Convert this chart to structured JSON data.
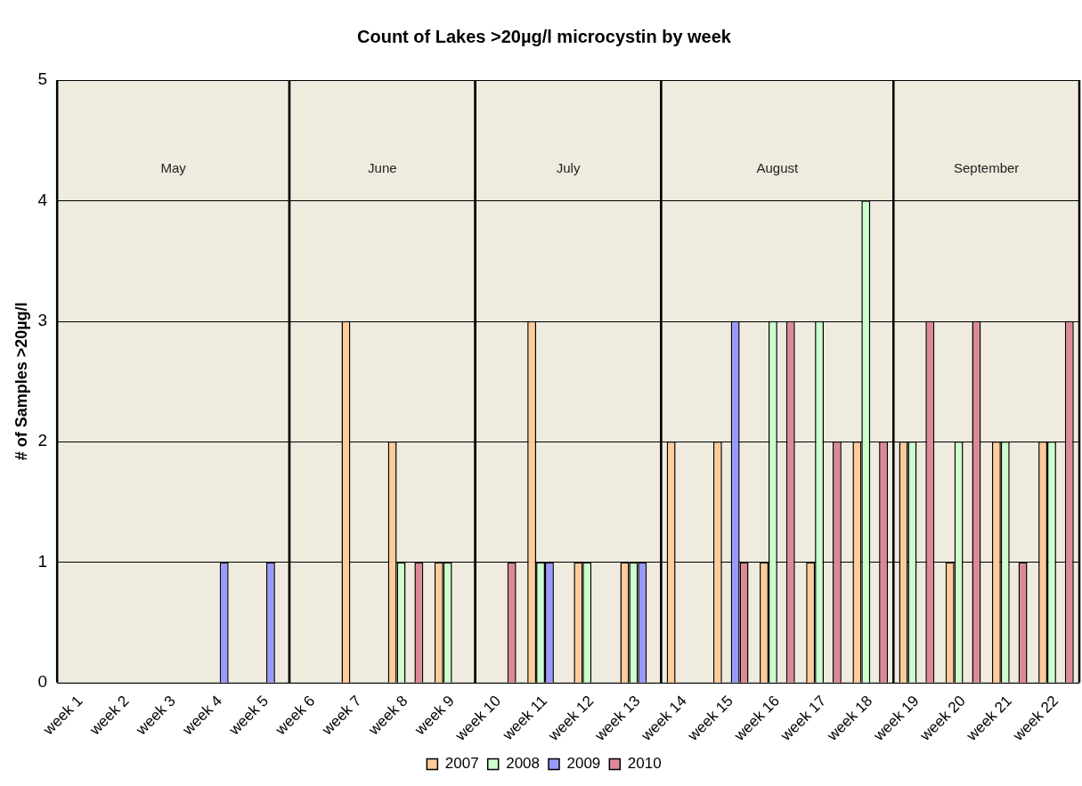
{
  "chart_data": {
    "type": "bar",
    "title": "Count of Lakes >20µg/l microcystin by week",
    "ylabel": "# of Samples >20µg/l",
    "categories": [
      "week 1",
      "week 2",
      "week 3",
      "week 4",
      "week 5",
      "week 6",
      "week 7",
      "week 8",
      "week 9",
      "week 10",
      "week 11",
      "week 12",
      "week 13",
      "week 14",
      "week 15",
      "week 16",
      "week 17",
      "week 18",
      "week 19",
      "week 20",
      "week 21",
      "week 22"
    ],
    "series": [
      {
        "name": "2007",
        "color": "#ffcc99",
        "values": [
          0,
          0,
          0,
          0,
          0,
          0,
          3,
          2,
          1,
          0,
          3,
          1,
          1,
          2,
          2,
          1,
          1,
          2,
          2,
          1,
          2,
          2
        ]
      },
      {
        "name": "2008",
        "color": "#ccffcc",
        "values": [
          0,
          0,
          0,
          0,
          0,
          0,
          0,
          1,
          1,
          0,
          1,
          1,
          1,
          0,
          0,
          3,
          3,
          4,
          2,
          2,
          2,
          2
        ]
      },
      {
        "name": "2009",
        "color": "#9999ff",
        "values": [
          0,
          0,
          0,
          1,
          1,
          0,
          0,
          0,
          0,
          0,
          1,
          0,
          1,
          0,
          3,
          0,
          0,
          0,
          0,
          0,
          0,
          0
        ]
      },
      {
        "name": "2010",
        "color": "#dd8899",
        "values": [
          0,
          0,
          0,
          0,
          0,
          0,
          0,
          1,
          0,
          1,
          0,
          0,
          0,
          0,
          1,
          3,
          2,
          2,
          3,
          3,
          1,
          3
        ]
      }
    ],
    "ylim": [
      0,
      5
    ],
    "yticks": [
      0,
      1,
      2,
      3,
      4,
      5
    ],
    "grid": "y",
    "legend": "bottom",
    "bands": [
      {
        "axis": "x",
        "from": "week 1",
        "to": "week 5",
        "label": "May",
        "color": "#efebdf"
      },
      {
        "axis": "x",
        "from": "week 6",
        "to": "week 9",
        "label": "June",
        "color": "#efebdf"
      },
      {
        "axis": "x",
        "from": "week 10",
        "to": "week 13",
        "label": "July",
        "color": "#efebdf"
      },
      {
        "axis": "x",
        "from": "week 14",
        "to": "week 18",
        "label": "August",
        "color": "#efebdf"
      },
      {
        "axis": "x",
        "from": "week 19",
        "to": "week 22",
        "label": "September",
        "color": "#efebdf"
      }
    ]
  }
}
